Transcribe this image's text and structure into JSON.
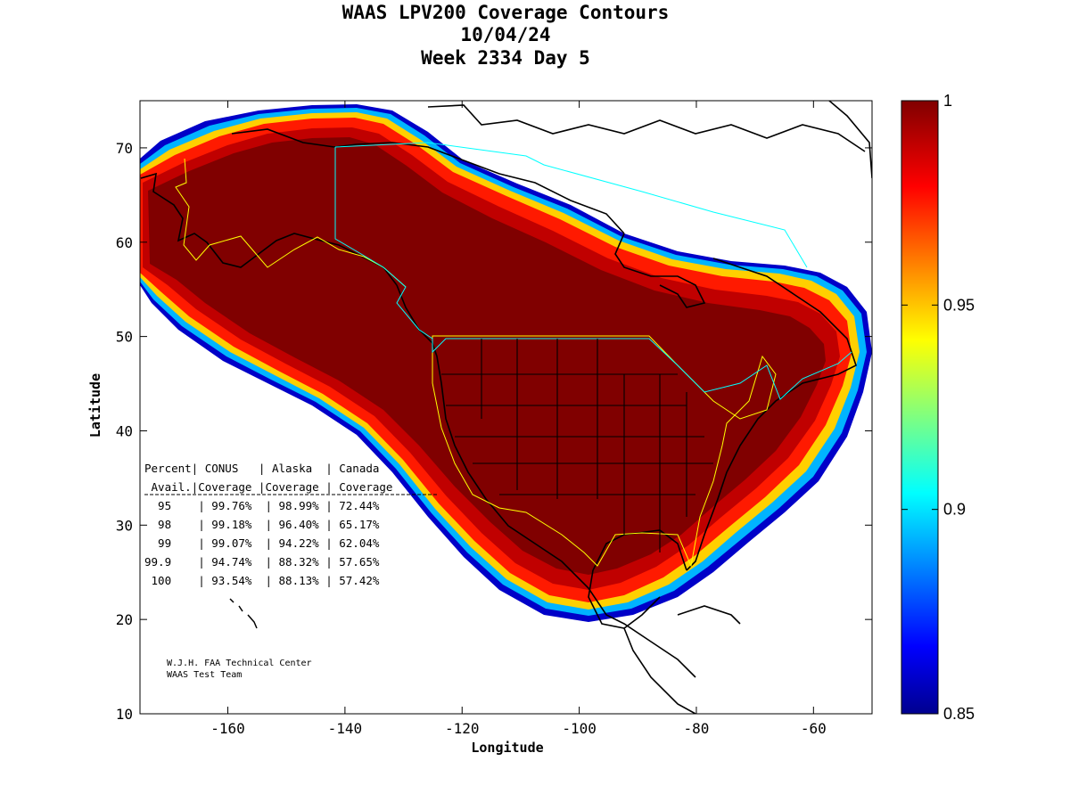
{
  "title": {
    "line1": "WAAS LPV200 Coverage Contours",
    "line2": "10/04/24",
    "line3": "Week 2334 Day 5"
  },
  "axes": {
    "xlabel": "Longitude",
    "ylabel": "Latitude",
    "xticks": [
      "-160",
      "-140",
      "-120",
      "-100",
      "-80",
      "-60"
    ],
    "yticks": [
      "70",
      "60",
      "50",
      "40",
      "30",
      "20",
      "10"
    ],
    "xlim": [
      -175,
      -50
    ],
    "ylim": [
      10,
      75
    ]
  },
  "colorbar": {
    "ticks": [
      "1",
      "0.95",
      "0.9",
      "0.85"
    ],
    "range": [
      0.85,
      1
    ],
    "colormap": "jet"
  },
  "stats_table": {
    "header1": "Percent| CONUS   | Alaska  | Canada",
    "header2": " Avail.|Coverage |Coverage | Coverage",
    "rows": [
      "  95    | 99.76%  | 98.99% | 72.44%",
      "  98    | 99.18%  | 96.40% | 65.17%",
      "  99    | 99.07%  | 94.22% | 62.04%",
      "99.9    | 94.74%  | 88.32% | 57.65%",
      " 100    | 93.54%  | 88.13% | 57.42%"
    ]
  },
  "credit": {
    "line1": "W.J.H. FAA Technical Center",
    "line2": "WAAS Test Team"
  },
  "colors": {
    "max_coverage": "#800000",
    "min_coverage": "#00008f",
    "coastline": "#000000",
    "region_border_yellow": "#ffff00",
    "region_border_cyan": "#00ffff"
  },
  "chart_data": {
    "type": "heatmap",
    "title": "WAAS LPV200 Coverage Contours",
    "xlabel": "Longitude",
    "ylabel": "Latitude",
    "xlim": [
      -175,
      -50
    ],
    "ylim": [
      10,
      75
    ],
    "colorbar_range": [
      0.85,
      1
    ],
    "table": {
      "columns": [
        "Percent Avail.",
        "CONUS Coverage",
        "Alaska Coverage",
        "Canada Coverage"
      ],
      "rows": [
        [
          "95",
          "99.76%",
          "98.99%",
          "72.44%"
        ],
        [
          "98",
          "99.18%",
          "96.40%",
          "65.17%"
        ],
        [
          "99",
          "99.07%",
          "94.22%",
          "62.04%"
        ],
        [
          "99.9",
          "94.74%",
          "88.32%",
          "57.65%"
        ],
        [
          "100",
          "93.54%",
          "88.13%",
          "57.42%"
        ]
      ]
    }
  }
}
